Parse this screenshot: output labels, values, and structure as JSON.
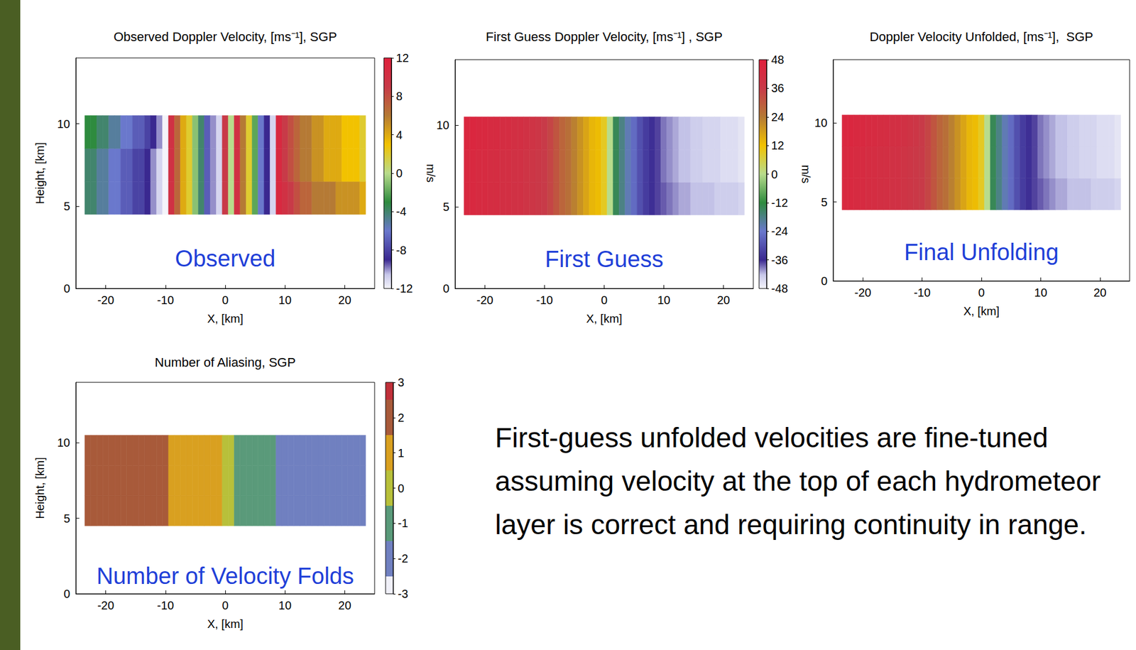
{
  "chart_data": [
    {
      "type": "heatmap",
      "title": "Observed Doppler Velocity, [ms⁻¹], SGP",
      "annotation": "Observed",
      "xlabel": "X, [km]",
      "ylabel": "Height, [km]",
      "xlim": [
        -25,
        25
      ],
      "xticks": [
        -20,
        -10,
        0,
        10,
        20
      ],
      "ylim": [
        0,
        14
      ],
      "yticks": [
        0,
        5,
        10
      ],
      "x": [
        -23,
        -22,
        -21,
        -20,
        -19,
        -18,
        -17,
        -16,
        -15,
        -14,
        -13,
        -12,
        -11,
        -10,
        -9,
        -8,
        -7,
        -6,
        -5,
        -4,
        -3,
        -2,
        -1,
        0,
        1,
        2,
        3,
        4,
        5,
        6,
        7,
        8,
        9,
        10,
        11,
        12,
        13,
        14,
        15,
        16,
        17,
        18,
        19,
        20,
        21,
        22,
        23
      ],
      "y": [
        5.5,
        7.5,
        9.5
      ],
      "z": [
        [
          -4,
          -4,
          -5,
          -5,
          -6,
          -6,
          -7,
          -7,
          -8,
          -8,
          -9,
          -10,
          -11,
          -12,
          10,
          7,
          4,
          2,
          -1,
          -4,
          -7,
          -10,
          -11,
          9,
          0,
          10,
          6,
          2,
          -2,
          -6,
          -9,
          -11,
          11,
          10,
          9,
          8,
          7,
          7,
          6,
          6,
          6,
          6,
          5,
          5,
          5,
          5,
          4
        ],
        [
          -4,
          -4,
          -5,
          -5,
          -6,
          -6,
          -7,
          -7,
          -8,
          -8,
          -9,
          -10,
          -11,
          -12,
          10,
          7,
          4,
          2,
          -1,
          -4,
          -7,
          -10,
          -11,
          9,
          0,
          10,
          6,
          2,
          -2,
          -6,
          -9,
          -11,
          11,
          9,
          8,
          7,
          6,
          6,
          5,
          5,
          4,
          4,
          4,
          3,
          3,
          3,
          2
        ],
        [
          -3,
          -3,
          -4,
          -4,
          -5,
          -5,
          -6,
          -6,
          -7,
          -7,
          -8,
          -9,
          -10,
          -12,
          10,
          7,
          4,
          2,
          -1,
          -4,
          -7,
          -10,
          -11,
          9,
          0,
          10,
          6,
          2,
          -2,
          -6,
          -9,
          -11,
          11,
          9,
          8,
          7,
          6,
          6,
          5,
          5,
          4,
          4,
          4,
          3,
          3,
          3,
          2
        ]
      ],
      "colorbar": {
        "lim": [
          -12,
          12
        ],
        "ticks": [
          -12,
          -8,
          -4,
          0,
          4,
          8,
          12
        ],
        "label": "m/s"
      }
    },
    {
      "type": "heatmap",
      "title": "First Guess Doppler Velocity, [ms⁻¹] , SGP",
      "annotation": "First Guess",
      "xlabel": "X, [km]",
      "xlim": [
        -25,
        25
      ],
      "xticks": [
        -20,
        -10,
        0,
        10,
        20
      ],
      "ylim": [
        0,
        14
      ],
      "yticks": [
        0,
        5,
        10
      ],
      "x": [
        -23,
        -22,
        -21,
        -20,
        -19,
        -18,
        -17,
        -16,
        -15,
        -14,
        -13,
        -12,
        -11,
        -10,
        -9,
        -8,
        -7,
        -6,
        -5,
        -4,
        -3,
        -2,
        -1,
        0,
        1,
        2,
        3,
        4,
        5,
        6,
        7,
        8,
        9,
        10,
        11,
        12,
        13,
        14,
        15,
        16,
        17,
        18,
        19,
        20,
        21,
        22,
        23
      ],
      "y": [
        5.5,
        7.5,
        9.5
      ],
      "z": [
        [
          44,
          44,
          43,
          43,
          42,
          42,
          41,
          41,
          40,
          40,
          39,
          38,
          37,
          36,
          34,
          31,
          28,
          26,
          23,
          20,
          17,
          14,
          13,
          9,
          0,
          -14,
          -18,
          -22,
          -26,
          -30,
          -33,
          -35,
          -37,
          -38,
          -39,
          -40,
          -41,
          -41,
          -42,
          -42,
          -42,
          -42,
          -43,
          -43,
          -43,
          -43,
          -44
        ],
        [
          44,
          44,
          43,
          43,
          42,
          42,
          41,
          41,
          40,
          40,
          39,
          38,
          37,
          36,
          34,
          31,
          28,
          26,
          23,
          20,
          17,
          14,
          13,
          9,
          0,
          -14,
          -18,
          -22,
          -26,
          -30,
          -33,
          -35,
          -37,
          -39,
          -40,
          -41,
          -42,
          -42,
          -43,
          -43,
          -44,
          -44,
          -44,
          -45,
          -45,
          -45,
          -46
        ],
        [
          45,
          45,
          44,
          44,
          43,
          43,
          42,
          42,
          41,
          41,
          40,
          39,
          38,
          36,
          34,
          31,
          28,
          26,
          23,
          20,
          17,
          14,
          13,
          9,
          0,
          -14,
          -18,
          -22,
          -26,
          -30,
          -33,
          -35,
          -37,
          -39,
          -40,
          -41,
          -42,
          -42,
          -43,
          -43,
          -44,
          -44,
          -44,
          -45,
          -45,
          -45,
          -46
        ]
      ],
      "colorbar": {
        "lim": [
          -48,
          48
        ],
        "ticks": [
          -48,
          -36,
          -24,
          -12,
          0,
          12,
          24,
          36,
          48
        ],
        "label": "m/s"
      }
    },
    {
      "type": "heatmap",
      "title": "Doppler Velocity Unfolded, [ms⁻¹],  SGP",
      "annotation": "Final Unfolding",
      "xlabel": "X, [km]",
      "xlim": [
        -25,
        25
      ],
      "xticks": [
        -20,
        -10,
        0,
        10,
        20
      ],
      "ylim": [
        0,
        14
      ],
      "yticks": [
        0,
        5,
        10
      ],
      "x": [
        -23,
        -22,
        -21,
        -20,
        -19,
        -18,
        -17,
        -16,
        -15,
        -14,
        -13,
        -12,
        -11,
        -10,
        -9,
        -8,
        -7,
        -6,
        -5,
        -4,
        -3,
        -2,
        -1,
        0,
        1,
        2,
        3,
        4,
        5,
        6,
        7,
        8,
        9,
        10,
        11,
        12,
        13,
        14,
        15,
        16,
        17,
        18,
        19,
        20,
        21,
        22,
        23
      ],
      "y": [
        5.5,
        7.5,
        9.5
      ],
      "z": [
        [
          44,
          44,
          43,
          43,
          42,
          42,
          41,
          41,
          40,
          40,
          39,
          38,
          37,
          36,
          34,
          31,
          28,
          26,
          23,
          20,
          17,
          14,
          13,
          9,
          0,
          -14,
          -18,
          -22,
          -26,
          -30,
          -33,
          -35,
          -37,
          -38,
          -39,
          -40,
          -41,
          -41,
          -42,
          -42,
          -42,
          -42,
          -43,
          -43,
          -43,
          -43,
          -44
        ],
        [
          44,
          44,
          43,
          43,
          42,
          42,
          41,
          41,
          40,
          40,
          39,
          38,
          37,
          36,
          34,
          31,
          28,
          26,
          23,
          20,
          17,
          14,
          13,
          9,
          0,
          -14,
          -18,
          -22,
          -26,
          -30,
          -33,
          -35,
          -37,
          -39,
          -40,
          -41,
          -42,
          -42,
          -43,
          -43,
          -44,
          -44,
          -44,
          -45,
          -45,
          -45,
          -46
        ],
        [
          45,
          45,
          44,
          44,
          43,
          43,
          42,
          42,
          41,
          41,
          40,
          39,
          38,
          36,
          34,
          31,
          28,
          26,
          23,
          20,
          17,
          14,
          13,
          9,
          0,
          -14,
          -18,
          -22,
          -26,
          -30,
          -33,
          -35,
          -37,
          -39,
          -40,
          -41,
          -42,
          -42,
          -43,
          -43,
          -44,
          -44,
          -44,
          -45,
          -45,
          -45,
          -46
        ]
      ],
      "colorbar": {
        "lim": [
          -48,
          48
        ]
      }
    },
    {
      "type": "heatmap",
      "title": "Number of Aliasing, SGP",
      "annotation": "Number of Velocity Folds",
      "xlabel": "X, [km]",
      "ylabel": "Height, [km]",
      "xlim": [
        -25,
        25
      ],
      "xticks": [
        -20,
        -10,
        0,
        10,
        20
      ],
      "ylim": [
        0,
        14
      ],
      "yticks": [
        0,
        5,
        10
      ],
      "x": [
        -23,
        -22,
        -21,
        -20,
        -19,
        -18,
        -17,
        -16,
        -15,
        -14,
        -13,
        -12,
        -11,
        -10,
        -9,
        -8,
        -7,
        -6,
        -5,
        -4,
        -3,
        -2,
        -1,
        0,
        1,
        2,
        3,
        4,
        5,
        6,
        7,
        8,
        9,
        10,
        11,
        12,
        13,
        14,
        15,
        16,
        17,
        18,
        19,
        20,
        21,
        22,
        23
      ],
      "y": [
        5.5,
        7.5,
        9.5
      ],
      "z": [
        [
          2,
          2,
          2,
          2,
          2,
          2,
          2,
          2,
          2,
          2,
          2,
          2,
          2,
          2,
          1,
          1,
          1,
          1,
          1,
          1,
          1,
          1,
          1,
          0,
          0,
          -1,
          -1,
          -1,
          -1,
          -1,
          -1,
          -1,
          -2,
          -2,
          -2,
          -2,
          -2,
          -2,
          -2,
          -2,
          -2,
          -2,
          -2,
          -2,
          -2,
          -2,
          -2
        ],
        [
          2,
          2,
          2,
          2,
          2,
          2,
          2,
          2,
          2,
          2,
          2,
          2,
          2,
          2,
          1,
          1,
          1,
          1,
          1,
          1,
          1,
          1,
          1,
          0,
          0,
          -1,
          -1,
          -1,
          -1,
          -1,
          -1,
          -1,
          -2,
          -2,
          -2,
          -2,
          -2,
          -2,
          -2,
          -2,
          -2,
          -2,
          -2,
          -2,
          -2,
          -2,
          -2
        ],
        [
          2,
          2,
          2,
          2,
          2,
          2,
          2,
          2,
          2,
          2,
          2,
          2,
          2,
          2,
          1,
          1,
          1,
          1,
          1,
          1,
          1,
          1,
          1,
          0,
          0,
          -1,
          -1,
          -1,
          -1,
          -1,
          -1,
          -1,
          -2,
          -2,
          -2,
          -2,
          -2,
          -2,
          -2,
          -2,
          -2,
          -2,
          -2,
          -2,
          -2,
          -2,
          -2
        ]
      ],
      "colorbar": {
        "lim": [
          -3,
          3
        ],
        "ticks": [
          -3,
          -2,
          -1,
          0,
          1,
          2,
          3
        ]
      }
    }
  ],
  "caption": "First-guess unfolded velocities are fine-tuned assuming velocity at the top of each hydrometeor layer is correct and requiring continuity in range."
}
